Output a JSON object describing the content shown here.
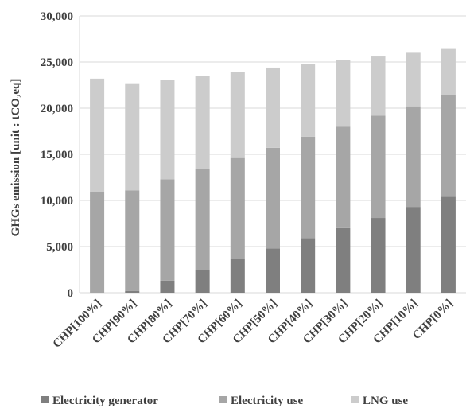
{
  "chart_data": {
    "type": "bar",
    "stacked": true,
    "categories": [
      "CHP[100%]",
      "CHP[90%]",
      "CHP[80%]",
      "CHP[70%]",
      "CHP[60%]",
      "CHP[50%]",
      "CHP[40%]",
      "CHP[30%]",
      "CHP[20%]",
      "CHP[10%]",
      "CHP[0%]"
    ],
    "series": [
      {
        "name": "Electricity generator",
        "color": "#7f7f7f",
        "values": [
          0,
          200,
          1300,
          2500,
          3700,
          4800,
          5900,
          7000,
          8100,
          9300,
          10400
        ]
      },
      {
        "name": "Electricity use",
        "color": "#a6a6a6",
        "values": [
          10900,
          10900,
          11000,
          10900,
          10900,
          10900,
          11000,
          11000,
          11100,
          10900,
          11000
        ]
      },
      {
        "name": "LNG use",
        "color": "#cccccc",
        "values": [
          12300,
          11600,
          10800,
          10100,
          9300,
          8700,
          7900,
          7200,
          6400,
          5800,
          5100
        ]
      }
    ],
    "title": "",
    "xlabel": "",
    "ylabel": "GHGs emission [unit : tCO₂eq]",
    "ylim": [
      0,
      30000
    ],
    "yticks": [
      "0",
      "5,000",
      "10,000",
      "15,000",
      "20,000",
      "25,000",
      "30,000"
    ],
    "ytick_values": [
      0,
      5000,
      10000,
      15000,
      20000,
      25000,
      30000
    ],
    "grid": "horizontal",
    "legend_position": "bottom"
  }
}
